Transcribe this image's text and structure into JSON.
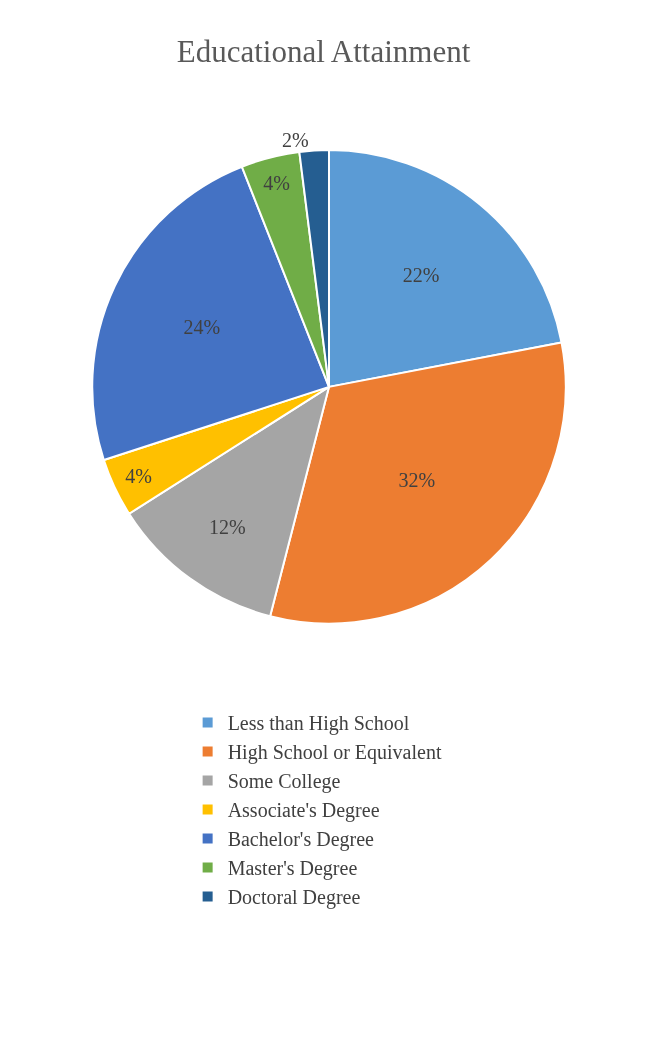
{
  "chart_data": {
    "type": "pie",
    "title": "Educational Attainment",
    "categories": [
      "Less than High School",
      "High School or Equivalent",
      "Some College",
      "Associate's Degree",
      "Bachelor's Degree",
      "Master's Degree",
      "Doctoral Degree"
    ],
    "values": [
      22,
      32,
      12,
      4,
      24,
      4,
      2
    ],
    "value_labels": [
      "22%",
      "32%",
      "12%",
      "4%",
      "24%",
      "4%",
      "2%"
    ],
    "colors": [
      "#5b9bd5",
      "#ed7d31",
      "#a5a5a5",
      "#ffc000",
      "#4472c4",
      "#70ad47",
      "#255e91"
    ],
    "legend": "bottom"
  }
}
